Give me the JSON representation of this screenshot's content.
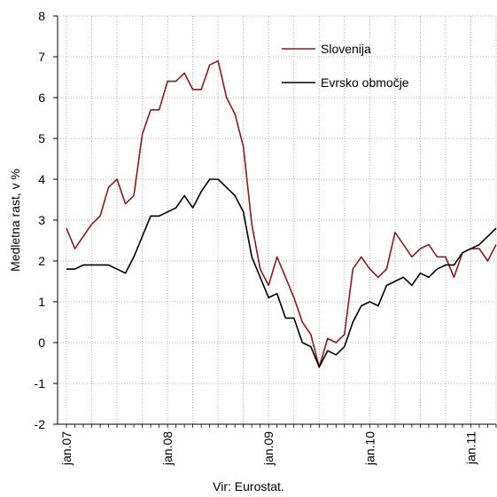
{
  "chart_data": {
    "type": "line",
    "ylabel": "Medletna rast, v %",
    "ylim": [
      -2,
      8
    ],
    "yticks": [
      "8",
      "7",
      "6",
      "5",
      "4",
      "3",
      "2",
      "1",
      "0",
      "-1",
      "-2"
    ],
    "x_tick_labels": [
      "jan.07",
      "jan.08",
      "jan.09",
      "jan.10",
      "jan.11"
    ],
    "x": [
      "2007-01",
      "2007-02",
      "2007-03",
      "2007-04",
      "2007-05",
      "2007-06",
      "2007-07",
      "2007-08",
      "2007-09",
      "2007-10",
      "2007-11",
      "2007-12",
      "2008-01",
      "2008-02",
      "2008-03",
      "2008-04",
      "2008-05",
      "2008-06",
      "2008-07",
      "2008-08",
      "2008-09",
      "2008-10",
      "2008-11",
      "2008-12",
      "2009-01",
      "2009-02",
      "2009-03",
      "2009-04",
      "2009-05",
      "2009-06",
      "2009-07",
      "2009-08",
      "2009-09",
      "2009-10",
      "2009-11",
      "2009-12",
      "2010-01",
      "2010-02",
      "2010-03",
      "2010-04",
      "2010-05",
      "2010-06",
      "2010-07",
      "2010-08",
      "2010-09",
      "2010-10",
      "2010-11",
      "2010-12",
      "2011-01",
      "2011-02",
      "2011-03",
      "2011-04"
    ],
    "grid": "dotted",
    "legend_position": "top-right",
    "series": [
      {
        "name": "Slovenija",
        "color": "#8b1a1a",
        "values": [
          2.8,
          2.3,
          2.6,
          2.9,
          3.1,
          3.8,
          4.0,
          3.4,
          3.6,
          5.1,
          5.7,
          5.7,
          6.4,
          6.4,
          6.6,
          6.2,
          6.2,
          6.8,
          6.9,
          6.0,
          5.6,
          4.8,
          2.9,
          1.8,
          1.4,
          2.1,
          1.6,
          1.1,
          0.5,
          0.2,
          -0.6,
          0.1,
          0.0,
          0.2,
          1.8,
          2.1,
          1.8,
          1.6,
          1.8,
          2.7,
          2.4,
          2.1,
          2.3,
          2.4,
          2.1,
          2.1,
          1.6,
          2.2,
          2.3,
          2.3,
          2.0,
          2.4
        ]
      },
      {
        "name": "Evrsko območje",
        "color": "#000000",
        "values": [
          1.8,
          1.8,
          1.9,
          1.9,
          1.9,
          1.9,
          1.8,
          1.7,
          2.1,
          2.6,
          3.1,
          3.1,
          3.2,
          3.3,
          3.6,
          3.3,
          3.7,
          4.0,
          4.0,
          3.8,
          3.6,
          3.2,
          2.1,
          1.6,
          1.1,
          1.2,
          0.6,
          0.6,
          0.0,
          -0.1,
          -0.6,
          -0.2,
          -0.3,
          -0.1,
          0.5,
          0.9,
          1.0,
          0.9,
          1.4,
          1.5,
          1.6,
          1.4,
          1.7,
          1.6,
          1.8,
          1.9,
          1.9,
          2.2,
          2.3,
          2.4,
          2.6,
          2.8
        ]
      }
    ]
  },
  "source_note": "Vir: Eurostat."
}
